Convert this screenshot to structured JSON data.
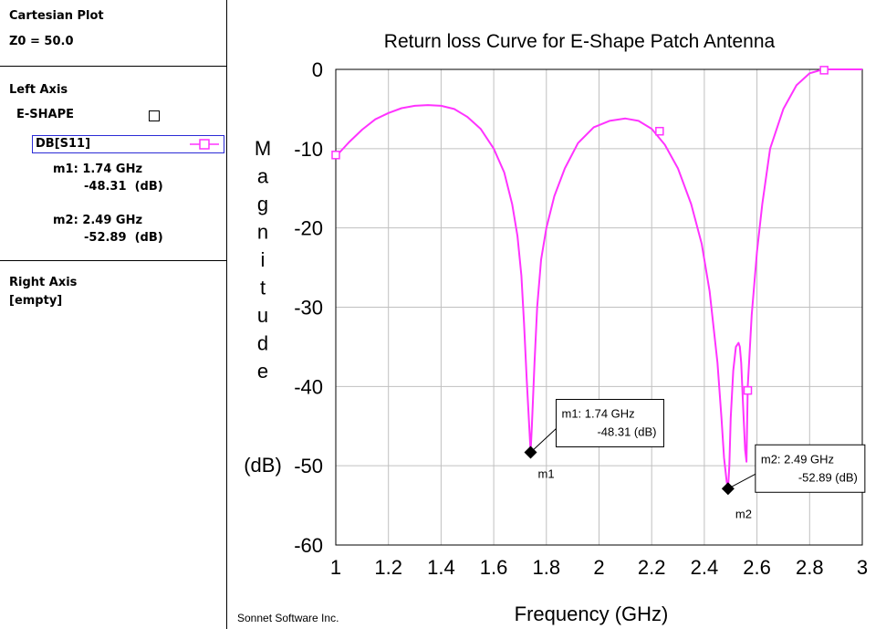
{
  "sidebar": {
    "plot_type": "Cartesian Plot",
    "z0": "Z0 = 50.0",
    "left_axis": {
      "title": "Left Axis",
      "project": "E-SHAPE",
      "trace": "DB[S11]",
      "trace_color": "#ff33ff",
      "markers": [
        {
          "line1": "m1: 1.74 GHz",
          "line2": "-48.31  (dB)"
        },
        {
          "line1": "m2: 2.49 GHz",
          "line2": "-52.89  (dB)"
        }
      ]
    },
    "right_axis": {
      "title": "Right Axis",
      "content": "[empty]"
    }
  },
  "footer": {
    "credit": "Sonnet Software Inc."
  },
  "chart_data": {
    "type": "line",
    "title": "Return loss Curve for E-Shape Patch Antenna",
    "xlabel": "Frequency (GHz)",
    "ylabel_letters": [
      "M",
      "a",
      "g",
      "n",
      "i",
      "t",
      "u",
      "d",
      "e"
    ],
    "ylabel_unit": "(dB)",
    "xlim": [
      1,
      3
    ],
    "ylim": [
      -60,
      0
    ],
    "grid": true,
    "xticks": [
      "1",
      "1.2",
      "1.4",
      "1.6",
      "1.8",
      "2",
      "2.2",
      "2.4",
      "2.6",
      "2.8",
      "3"
    ],
    "yticks": [
      "0",
      "-10",
      "-20",
      "-30",
      "-40",
      "-50",
      "-60"
    ],
    "series": [
      {
        "name": "DB[S11]",
        "color": "#ff33ff",
        "x": [
          1.0,
          1.05,
          1.1,
          1.15,
          1.2,
          1.25,
          1.3,
          1.35,
          1.4,
          1.45,
          1.5,
          1.55,
          1.6,
          1.64,
          1.67,
          1.69,
          1.705,
          1.715,
          1.725,
          1.735,
          1.74,
          1.745,
          1.755,
          1.765,
          1.78,
          1.8,
          1.83,
          1.87,
          1.92,
          1.98,
          2.04,
          2.1,
          2.15,
          2.2,
          2.25,
          2.3,
          2.35,
          2.39,
          2.42,
          2.45,
          2.465,
          2.475,
          2.485,
          2.49,
          2.495,
          2.5,
          2.51,
          2.52,
          2.53,
          2.535,
          2.54,
          2.548,
          2.555,
          2.56,
          2.565,
          2.58,
          2.6,
          2.62,
          2.65,
          2.7,
          2.75,
          2.8,
          2.85,
          2.9,
          2.95,
          3.0
        ],
        "y": [
          -11,
          -9.2,
          -7.6,
          -6.3,
          -5.5,
          -4.9,
          -4.6,
          -4.5,
          -4.6,
          -5.0,
          -6.0,
          -7.5,
          -10,
          -13,
          -17,
          -21,
          -26,
          -32,
          -39,
          -45,
          -48.31,
          -45,
          -37,
          -30,
          -24,
          -20,
          -16,
          -12.5,
          -9.3,
          -7.3,
          -6.5,
          -6.2,
          -6.5,
          -7.5,
          -9.5,
          -12.5,
          -17,
          -22,
          -28,
          -37,
          -44,
          -49,
          -52,
          -52.89,
          -50,
          -44,
          -38,
          -35,
          -34.5,
          -35,
          -37,
          -43,
          -48,
          -49.5,
          -40,
          -31,
          -23,
          -17,
          -10,
          -5,
          -2,
          -0.5,
          0,
          0,
          0,
          0
        ]
      }
    ],
    "trace_symbols": [
      {
        "x": 1.0,
        "y": -10.8
      },
      {
        "x": 2.23,
        "y": -7.8
      },
      {
        "x": 2.565,
        "y": -40.5
      },
      {
        "x": 2.855,
        "y": -0.1
      }
    ],
    "markers": [
      {
        "id": "m1",
        "x": 1.74,
        "y": -48.31,
        "label_line1": "m1: 1.74 GHz",
        "label_line2": "-48.31  (dB)"
      },
      {
        "id": "m2",
        "x": 2.49,
        "y": -52.89,
        "label_line1": "m2: 2.49 GHz",
        "label_line2": "-52.89  (dB)"
      }
    ]
  }
}
